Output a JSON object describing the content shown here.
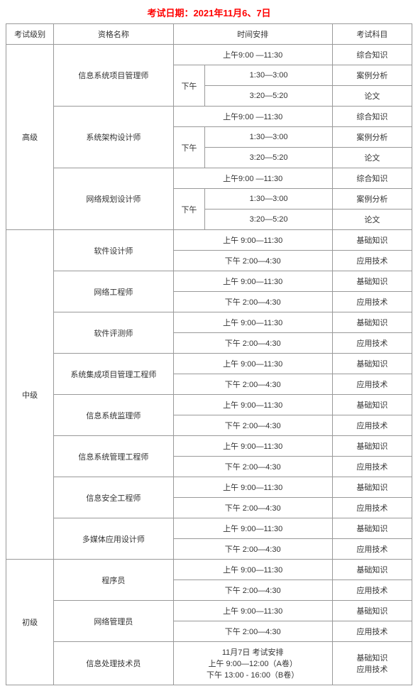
{
  "title": "考试日期：2021年11月6、7日",
  "headers": {
    "level": "考试级别",
    "qualification": "资格名称",
    "schedule": "时间安排",
    "subject": "考试科目"
  },
  "labels": {
    "am": "上午",
    "pm": "下午"
  },
  "times": {
    "am_full": "上午9:00 —11:30",
    "am_sp": "上午 9:00—11:30",
    "pm1": "1:30—3:00",
    "pm2": "3:20—5:20",
    "pm_sp": "下午 2:00—4:30",
    "info_line1": "11月7日 考试安排",
    "info_line2": "上午 9:00—12:00（A卷）",
    "info_line3": "下午 13:00 - 16:00（B卷）"
  },
  "subjects": {
    "zhzs": "综合知识",
    "alfx": "案例分析",
    "lw": "论文",
    "jczs": "基础知识",
    "yyjs": "应用技术",
    "both": "基础知识\n应用技术"
  },
  "levels": {
    "senior": "高级",
    "mid": "中级",
    "junior": "初级"
  },
  "quals": {
    "s1": "信息系统项目管理师",
    "s2": "系统架构设计师",
    "s3": "网络规划设计师",
    "m1": "软件设计师",
    "m2": "网络工程师",
    "m3": "软件评测师",
    "m4": "系统集成项目管理工程师",
    "m5": "信息系统监理师",
    "m6": "信息系统管理工程师",
    "m7": "信息安全工程师",
    "m8": "多媒体应用设计师",
    "j1": "程序员",
    "j2": "网络管理员",
    "j3": "信息处理技术员"
  }
}
